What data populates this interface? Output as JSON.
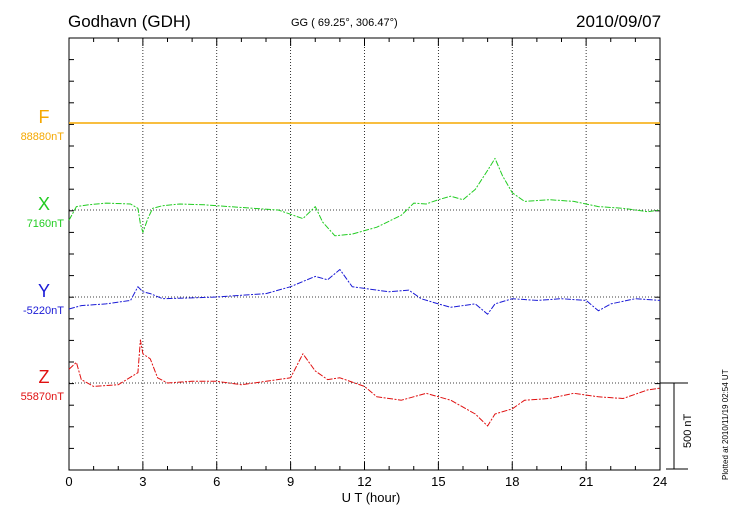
{
  "header": {
    "station": "Godhavn (GDH)",
    "coords": "GG ( 69.25°, 306.47°)",
    "date": "2010/09/07"
  },
  "side": {
    "scale_label": "500 nT",
    "plotted": "Plotted at 2010/11/19 02:54 UT"
  },
  "chart_data": {
    "type": "line",
    "xlabel": "U T (hour)",
    "xlim": [
      0,
      24
    ],
    "xticks": [
      0,
      3,
      6,
      9,
      12,
      15,
      18,
      21,
      24
    ],
    "grid": true,
    "scale_bar_nT": 500,
    "channels": [
      {
        "name": "F",
        "baseline": "88880nT",
        "color": "#f5a800",
        "flat": true
      },
      {
        "name": "X",
        "baseline": "7160nT",
        "color": "#22cc22",
        "points": [
          [
            0,
            -60
          ],
          [
            0.3,
            20
          ],
          [
            0.8,
            30
          ],
          [
            1.5,
            40
          ],
          [
            2.5,
            35
          ],
          [
            2.8,
            10
          ],
          [
            2.9,
            -80
          ],
          [
            3.0,
            -130
          ],
          [
            3.2,
            -50
          ],
          [
            3.4,
            10
          ],
          [
            3.8,
            25
          ],
          [
            4.5,
            35
          ],
          [
            5.5,
            30
          ],
          [
            6.5,
            20
          ],
          [
            7.5,
            10
          ],
          [
            8.5,
            0
          ],
          [
            9.5,
            -50
          ],
          [
            10.0,
            20
          ],
          [
            10.3,
            -70
          ],
          [
            10.8,
            -150
          ],
          [
            11.5,
            -140
          ],
          [
            12.5,
            -100
          ],
          [
            13.5,
            -30
          ],
          [
            14.0,
            40
          ],
          [
            14.5,
            35
          ],
          [
            15.0,
            60
          ],
          [
            15.5,
            80
          ],
          [
            16.0,
            60
          ],
          [
            16.5,
            120
          ],
          [
            17.0,
            230
          ],
          [
            17.3,
            300
          ],
          [
            17.6,
            200
          ],
          [
            18.0,
            100
          ],
          [
            18.5,
            50
          ],
          [
            19.5,
            60
          ],
          [
            20.5,
            50
          ],
          [
            21.5,
            20
          ],
          [
            22.5,
            10
          ],
          [
            23.5,
            -10
          ],
          [
            24,
            0
          ]
        ]
      },
      {
        "name": "Y",
        "baseline": "-5220nT",
        "color": "#1a1ad6",
        "points": [
          [
            0,
            -70
          ],
          [
            0.5,
            -50
          ],
          [
            1.5,
            -40
          ],
          [
            2.5,
            -20
          ],
          [
            2.8,
            60
          ],
          [
            3.0,
            30
          ],
          [
            3.3,
            20
          ],
          [
            3.8,
            -10
          ],
          [
            5,
            -5
          ],
          [
            6,
            0
          ],
          [
            7,
            10
          ],
          [
            8,
            20
          ],
          [
            9,
            60
          ],
          [
            9.5,
            90
          ],
          [
            10,
            120
          ],
          [
            10.5,
            100
          ],
          [
            11,
            160
          ],
          [
            11.5,
            60
          ],
          [
            12,
            50
          ],
          [
            13,
            30
          ],
          [
            13.8,
            40
          ],
          [
            14.3,
            -10
          ],
          [
            15,
            -40
          ],
          [
            15.5,
            -60
          ],
          [
            16.5,
            -40
          ],
          [
            17.0,
            -100
          ],
          [
            17.3,
            -40
          ],
          [
            18,
            -10
          ],
          [
            19,
            -20
          ],
          [
            20,
            -10
          ],
          [
            21,
            -20
          ],
          [
            21.5,
            -80
          ],
          [
            22,
            -40
          ],
          [
            23,
            -10
          ],
          [
            24,
            -20
          ]
        ]
      },
      {
        "name": "Z",
        "baseline": "55870nT",
        "color": "#e01010",
        "points": [
          [
            0,
            80
          ],
          [
            0.3,
            120
          ],
          [
            0.5,
            20
          ],
          [
            1,
            -20
          ],
          [
            2,
            -10
          ],
          [
            2.8,
            60
          ],
          [
            2.9,
            250
          ],
          [
            3.0,
            170
          ],
          [
            3.3,
            140
          ],
          [
            3.6,
            30
          ],
          [
            4,
            0
          ],
          [
            5,
            10
          ],
          [
            6,
            10
          ],
          [
            7,
            -10
          ],
          [
            8,
            10
          ],
          [
            9,
            30
          ],
          [
            9.5,
            170
          ],
          [
            10,
            70
          ],
          [
            10.5,
            20
          ],
          [
            11,
            30
          ],
          [
            12,
            -20
          ],
          [
            12.5,
            -80
          ],
          [
            13.5,
            -100
          ],
          [
            14.5,
            -60
          ],
          [
            15.5,
            -100
          ],
          [
            16.5,
            -180
          ],
          [
            17.0,
            -250
          ],
          [
            17.3,
            -180
          ],
          [
            18,
            -150
          ],
          [
            18.5,
            -100
          ],
          [
            19.5,
            -90
          ],
          [
            20.5,
            -60
          ],
          [
            21.5,
            -80
          ],
          [
            22.5,
            -90
          ],
          [
            23.5,
            -40
          ],
          [
            24,
            -30
          ]
        ]
      }
    ]
  }
}
